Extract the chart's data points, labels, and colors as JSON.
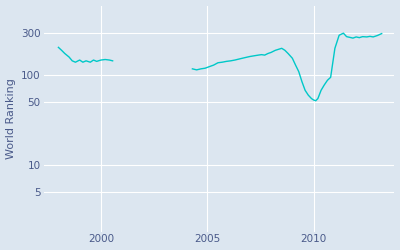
{
  "ylabel": "World Ranking",
  "line_color": "#00c8c8",
  "bg_color": "#dce6f0",
  "plot_bg_color": "#dce6f0",
  "yticks": [
    5,
    10,
    50,
    100,
    300
  ],
  "ytick_labels": [
    "5",
    "10",
    "50",
    "100",
    "300"
  ],
  "xticks": [
    2000,
    2005,
    2010
  ],
  "xlim": [
    1997.3,
    2013.8
  ],
  "ylim": [
    1.8,
    600
  ],
  "segment1": {
    "x": [
      1998.0,
      1998.15,
      1998.3,
      1998.5,
      1998.65,
      1998.8,
      1999.0,
      1999.15,
      1999.3,
      1999.5,
      1999.65,
      1999.8,
      2000.0,
      2000.2,
      2000.4,
      2000.55
    ],
    "y": [
      205,
      190,
      175,
      160,
      145,
      140,
      148,
      140,
      145,
      140,
      148,
      143,
      148,
      150,
      148,
      145
    ]
  },
  "segment2": {
    "x": [
      2004.3,
      2004.5,
      2004.7,
      2004.9,
      2005.1,
      2005.3,
      2005.5,
      2005.7,
      2005.9,
      2006.1,
      2006.3,
      2006.5,
      2006.65,
      2006.8,
      2007.0,
      2007.2,
      2007.4,
      2007.55,
      2007.7,
      2007.85,
      2008.0,
      2008.1,
      2008.2,
      2008.35,
      2008.5,
      2008.65,
      2008.8,
      2009.0,
      2009.15,
      2009.3,
      2009.45,
      2009.6,
      2009.75,
      2009.9,
      2010.0,
      2010.1,
      2010.2,
      2010.35,
      2010.5,
      2010.65,
      2010.8,
      2011.0,
      2011.2,
      2011.4,
      2011.55,
      2011.7,
      2011.85,
      2012.0,
      2012.15,
      2012.3,
      2012.5,
      2012.65,
      2012.8,
      2013.0,
      2013.2
    ],
    "y": [
      118,
      115,
      118,
      120,
      125,
      130,
      138,
      140,
      143,
      145,
      148,
      152,
      155,
      158,
      162,
      165,
      168,
      170,
      168,
      175,
      180,
      185,
      190,
      195,
      200,
      190,
      175,
      155,
      130,
      110,
      85,
      68,
      60,
      55,
      53,
      52,
      55,
      68,
      78,
      88,
      95,
      200,
      280,
      295,
      270,
      265,
      260,
      268,
      263,
      270,
      268,
      272,
      268,
      278,
      292
    ]
  },
  "grid_color": "#ffffff",
  "tick_color": "#4a5a8a",
  "spine_color": "#c0cce0"
}
